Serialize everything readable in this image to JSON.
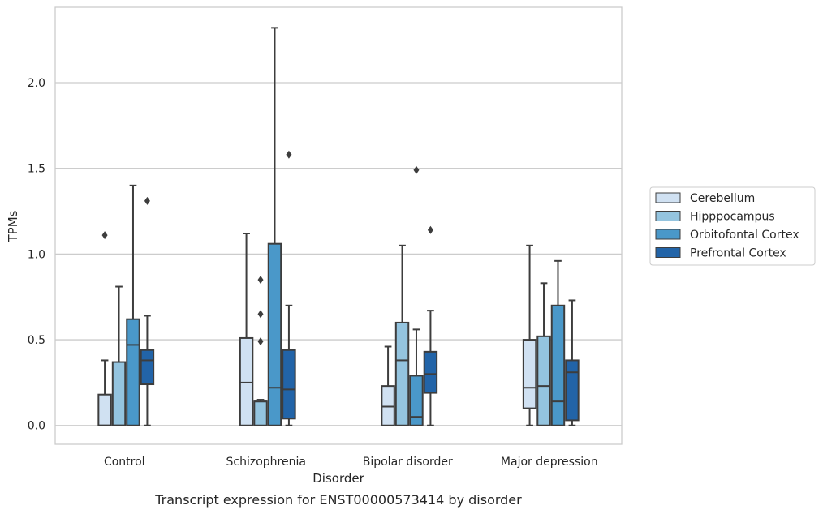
{
  "chart_data": {
    "type": "box",
    "title": "Transcript expression for ENST00000573414 by disorder",
    "xlabel": "Disorder",
    "ylabel": "TPMs",
    "ylim": [
      -0.11,
      2.44
    ],
    "yticks": [
      "0.0",
      "0.5",
      "1.0",
      "1.5",
      "2.0"
    ],
    "grid": true,
    "legend_position": "right",
    "categories": [
      "Control",
      "Schizophrenia",
      "Bipolar disorder",
      "Major depression"
    ],
    "series": [
      {
        "name": "Cerebellum",
        "color": "#d0e1f2",
        "boxes": [
          {
            "min": 0.0,
            "q1": 0.0,
            "median": 0.0,
            "q3": 0.18,
            "max": 0.38,
            "outliers": [
              1.11
            ]
          },
          {
            "min": 0.0,
            "q1": 0.0,
            "median": 0.25,
            "q3": 0.51,
            "max": 1.12,
            "outliers": []
          },
          {
            "min": 0.0,
            "q1": 0.0,
            "median": 0.11,
            "q3": 0.23,
            "max": 0.46,
            "outliers": []
          },
          {
            "min": 0.0,
            "q1": 0.1,
            "median": 0.22,
            "q3": 0.5,
            "max": 1.05,
            "outliers": []
          }
        ]
      },
      {
        "name": "Hipppocampus",
        "color": "#94c4df",
        "boxes": [
          {
            "min": 0.0,
            "q1": 0.0,
            "median": 0.0,
            "q3": 0.37,
            "max": 0.81,
            "outliers": []
          },
          {
            "min": 0.0,
            "q1": 0.0,
            "median": 0.14,
            "q3": 0.14,
            "max": 0.15,
            "outliers": [
              0.49,
              0.65,
              0.85
            ]
          },
          {
            "min": 0.0,
            "q1": 0.0,
            "median": 0.38,
            "q3": 0.6,
            "max": 1.05,
            "outliers": []
          },
          {
            "min": 0.0,
            "q1": 0.0,
            "median": 0.23,
            "q3": 0.52,
            "max": 0.83,
            "outliers": []
          }
        ]
      },
      {
        "name": "Orbitofontal Cortex",
        "color": "#4a98c9",
        "boxes": [
          {
            "min": 0.0,
            "q1": 0.0,
            "median": 0.47,
            "q3": 0.62,
            "max": 1.4,
            "outliers": []
          },
          {
            "min": 0.0,
            "q1": 0.0,
            "median": 0.22,
            "q3": 1.06,
            "max": 2.32,
            "outliers": []
          },
          {
            "min": 0.0,
            "q1": 0.0,
            "median": 0.05,
            "q3": 0.29,
            "max": 0.56,
            "outliers": [
              1.49
            ]
          },
          {
            "min": 0.0,
            "q1": 0.0,
            "median": 0.14,
            "q3": 0.7,
            "max": 0.96,
            "outliers": []
          }
        ]
      },
      {
        "name": "Prefrontal Cortex",
        "color": "#2264a8",
        "boxes": [
          {
            "min": 0.0,
            "q1": 0.24,
            "median": 0.38,
            "q3": 0.44,
            "max": 0.64,
            "outliers": [
              1.31
            ]
          },
          {
            "min": 0.0,
            "q1": 0.04,
            "median": 0.21,
            "q3": 0.44,
            "max": 0.7,
            "outliers": [
              1.58
            ]
          },
          {
            "min": 0.0,
            "q1": 0.19,
            "median": 0.3,
            "q3": 0.43,
            "max": 0.67,
            "outliers": [
              1.14
            ]
          },
          {
            "min": 0.0,
            "q1": 0.03,
            "median": 0.31,
            "q3": 0.38,
            "max": 0.73,
            "outliers": []
          }
        ]
      }
    ]
  }
}
